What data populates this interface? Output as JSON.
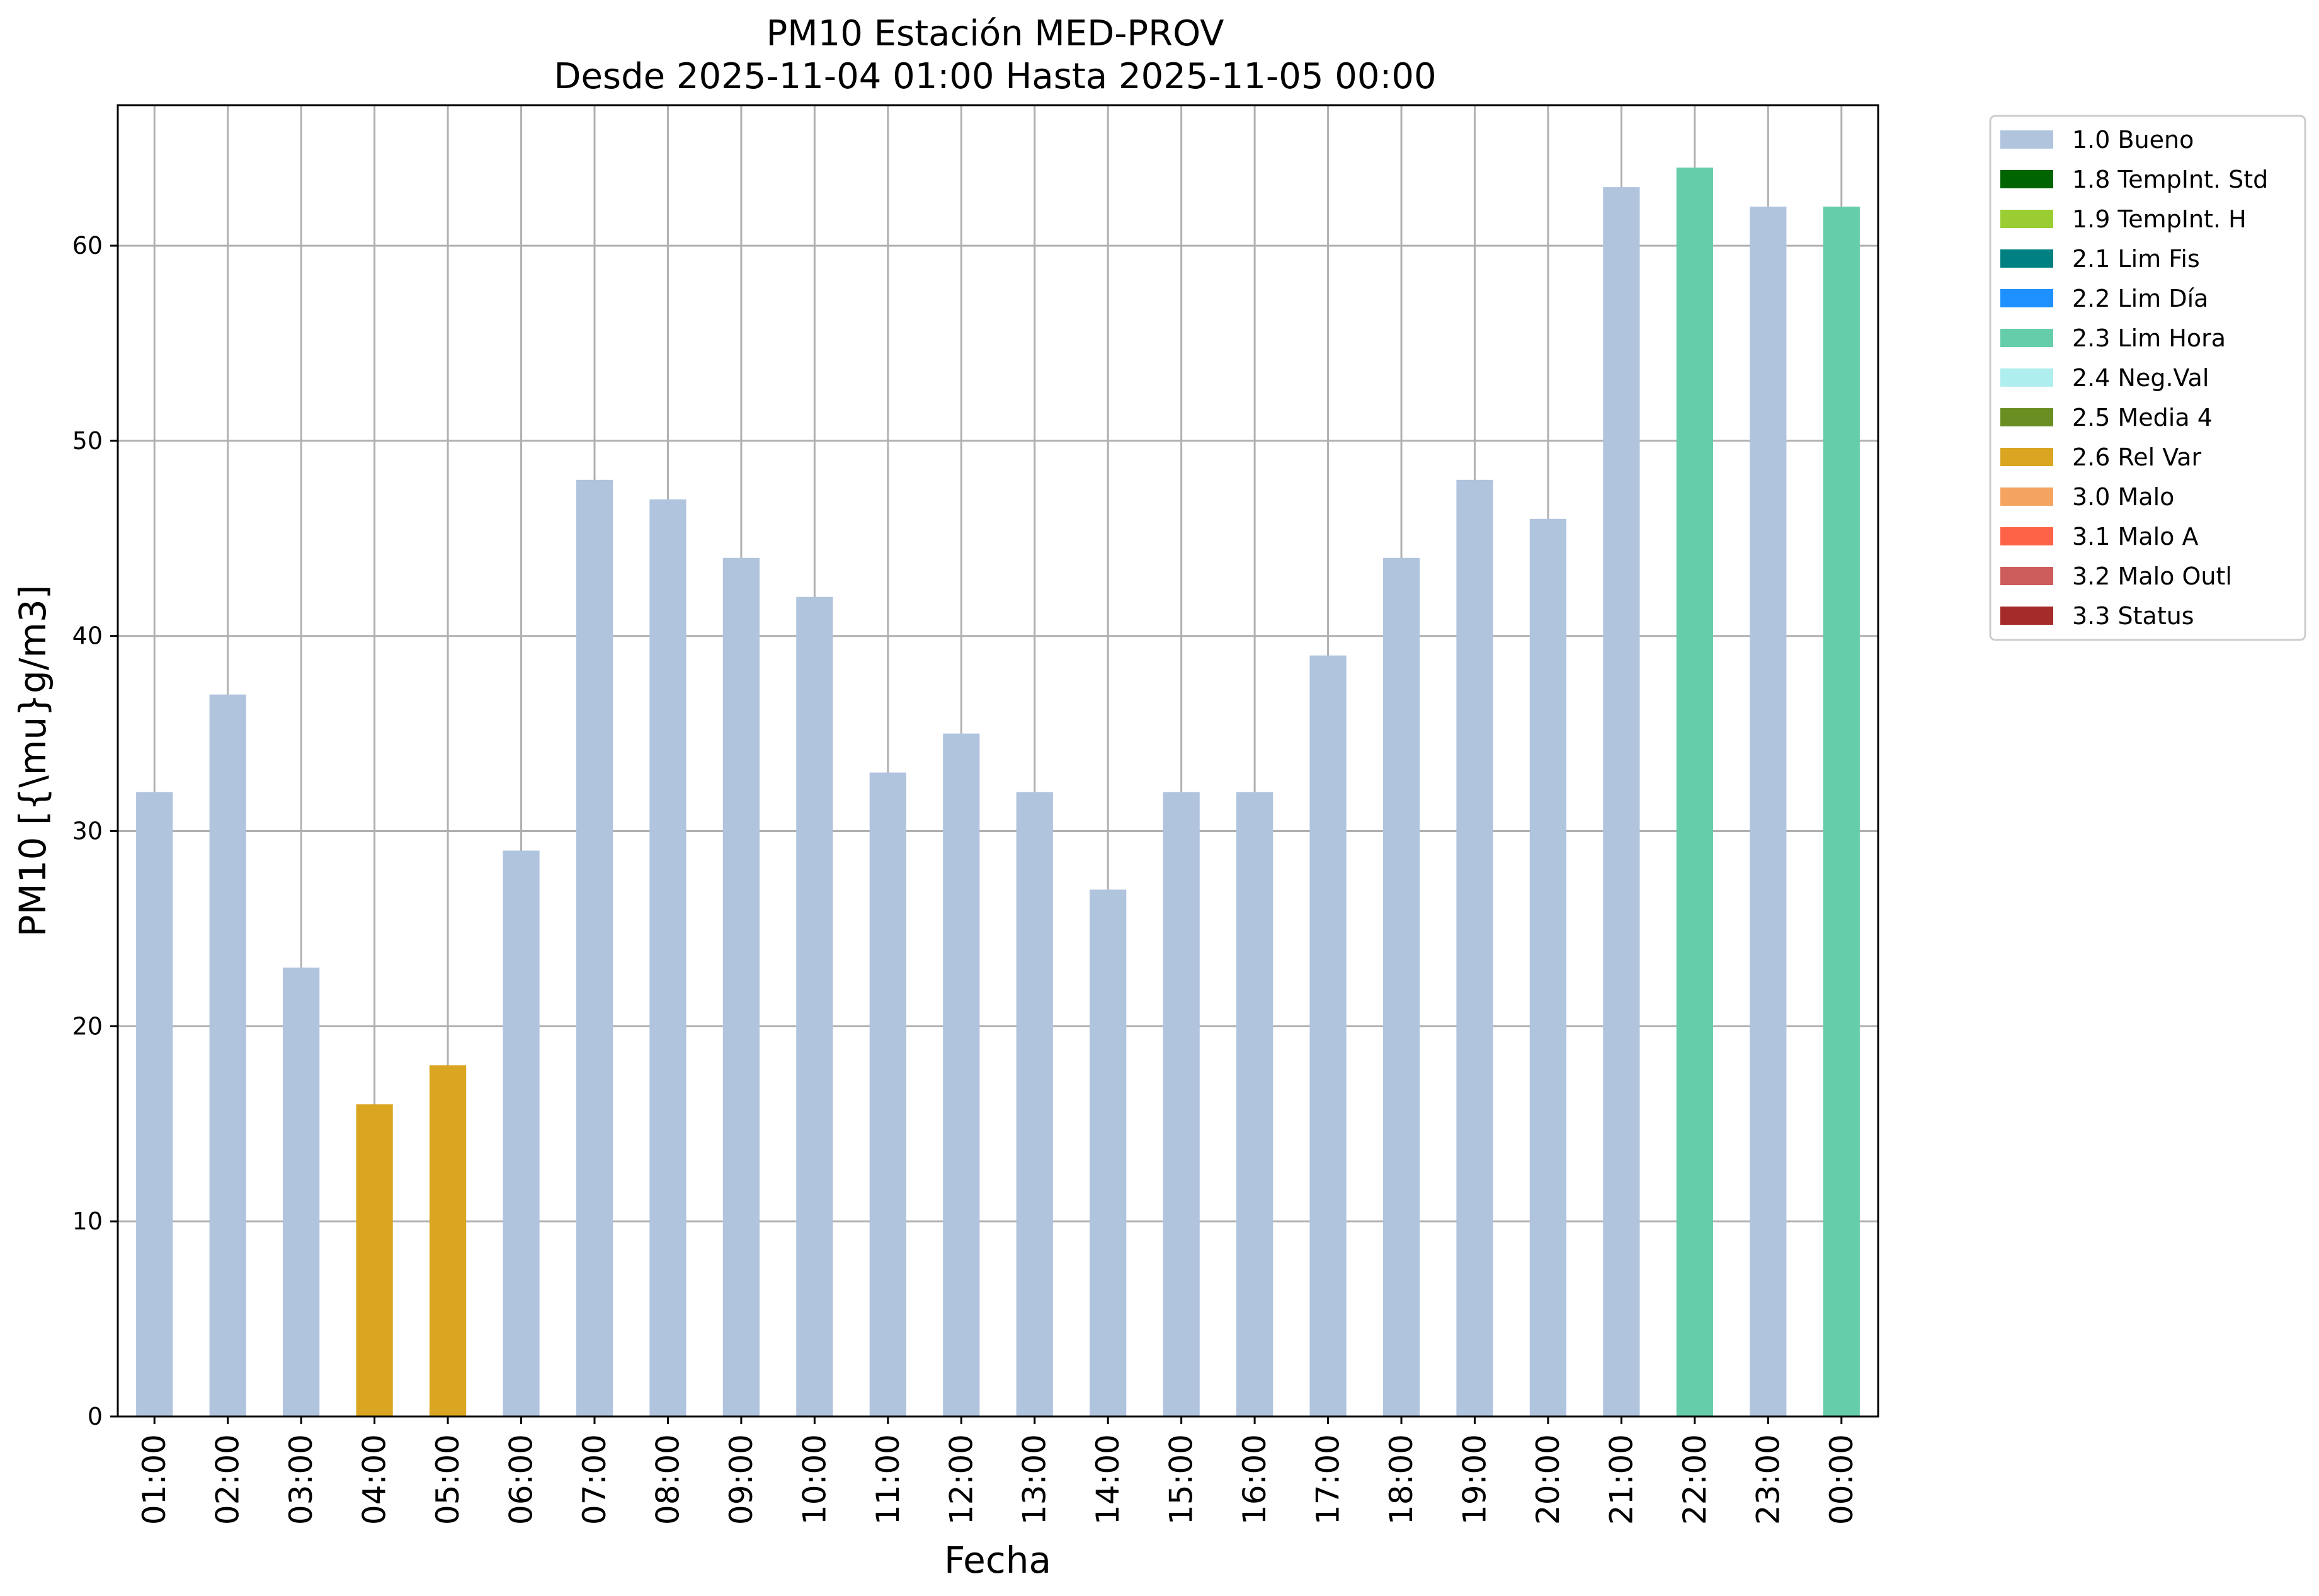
{
  "chart_data": {
    "type": "bar",
    "title": "PM10 Estación MED-PROV",
    "subtitle": "Desde 2025-11-04 01:00 Hasta 2025-11-05 00:00",
    "xlabel": "Fecha",
    "ylabel": "PM10 [{\\mu}g/m3]",
    "ylim": [
      0,
      67.2
    ],
    "yticks": [
      0,
      10,
      20,
      30,
      40,
      50,
      60
    ],
    "grid": true,
    "legend_position": "outside-top-right",
    "categories": [
      "01:00",
      "02:00",
      "03:00",
      "04:00",
      "05:00",
      "06:00",
      "07:00",
      "08:00",
      "09:00",
      "10:00",
      "11:00",
      "12:00",
      "13:00",
      "14:00",
      "15:00",
      "16:00",
      "17:00",
      "18:00",
      "19:00",
      "20:00",
      "21:00",
      "22:00",
      "23:00",
      "00:00"
    ],
    "values": [
      32,
      37,
      23,
      16,
      18,
      29,
      48,
      47,
      44,
      42,
      33,
      35,
      32,
      27,
      32,
      32,
      39,
      44,
      48,
      46,
      63,
      64,
      62,
      62
    ],
    "flags": [
      "1.0 Bueno",
      "1.0 Bueno",
      "1.0 Bueno",
      "2.6 Rel Var",
      "2.6 Rel Var",
      "1.0 Bueno",
      "1.0 Bueno",
      "1.0 Bueno",
      "1.0 Bueno",
      "1.0 Bueno",
      "1.0 Bueno",
      "1.0 Bueno",
      "1.0 Bueno",
      "1.0 Bueno",
      "1.0 Bueno",
      "1.0 Bueno",
      "1.0 Bueno",
      "1.0 Bueno",
      "1.0 Bueno",
      "1.0 Bueno",
      "1.0 Bueno",
      "2.3 Lim Hora",
      "1.0 Bueno",
      "2.3 Lim Hora"
    ],
    "legend": [
      {
        "label": "1.0 Bueno",
        "color": "#b0c4de"
      },
      {
        "label": "1.8 TempInt. Std",
        "color": "#006400"
      },
      {
        "label": "1.9 TempInt. H",
        "color": "#9acd32"
      },
      {
        "label": "2.1 Lim Fis",
        "color": "#008080"
      },
      {
        "label": "2.2 Lim Día",
        "color": "#1e90ff"
      },
      {
        "label": "2.3 Lim Hora",
        "color": "#66cdaa"
      },
      {
        "label": "2.4 Neg.Val",
        "color": "#afeeee"
      },
      {
        "label": "2.5 Media 4",
        "color": "#6b8e23"
      },
      {
        "label": "2.6 Rel Var",
        "color": "#daa520"
      },
      {
        "label": "3.0 Malo",
        "color": "#f4a460"
      },
      {
        "label": "3.1 Malo A",
        "color": "#ff6347"
      },
      {
        "label": "3.2 Malo Outl",
        "color": "#cd5c5c"
      },
      {
        "label": "3.3 Status",
        "color": "#a52a2a"
      }
    ]
  }
}
